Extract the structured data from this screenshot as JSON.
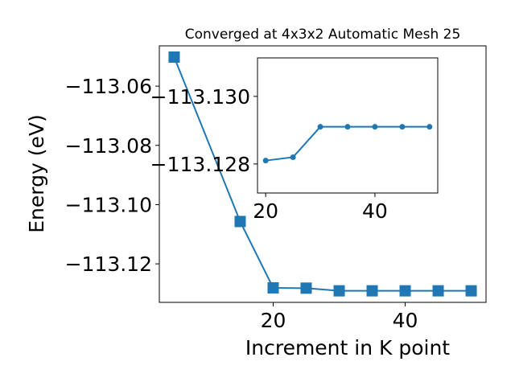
{
  "chart_data": [
    {
      "type": "line",
      "title": "Converged at 4x3x2 Automatic Mesh 25",
      "x_label": "Increment in K point",
      "y_label": "Energy (eV)",
      "x": [
        5,
        15,
        20,
        25,
        30,
        35,
        40,
        45,
        50
      ],
      "series": [
        {
          "color": "#1f77b4",
          "marker": "square",
          "values": [
            -113.0502,
            -113.1057,
            -113.1281,
            -113.1282,
            -113.1291,
            -113.1291,
            -113.1291,
            -113.1291,
            -113.1291
          ]
        }
      ],
      "xlim": [
        2.75,
        52.25
      ],
      "ylim": [
        -113.133,
        -113.0464
      ],
      "xticks": [
        20,
        40
      ],
      "yticks": [
        {
          "value": -113.06,
          "label": "−113.06"
        },
        {
          "value": -113.08,
          "label": "−113.08"
        },
        {
          "value": -113.1,
          "label": "−113.10"
        },
        {
          "value": -113.12,
          "label": "−113.12"
        }
      ]
    },
    {
      "type": "line",
      "x": [
        20,
        25,
        30,
        35,
        40,
        45,
        50
      ],
      "series": [
        {
          "color": "#1f77b4",
          "marker": "circle",
          "values": [
            -113.1281,
            -113.1282,
            -113.1291,
            -113.1291,
            -113.1291,
            -113.1291,
            -113.1291
          ]
        }
      ],
      "xlim": [
        18.5,
        51.5
      ],
      "ylim": [
        -113.12714,
        -113.13114
      ],
      "xticks": [
        20,
        40
      ],
      "yticks": [
        {
          "value": -113.13,
          "label": "−113.130"
        },
        {
          "value": -113.128,
          "label": "−113.128"
        }
      ]
    }
  ]
}
